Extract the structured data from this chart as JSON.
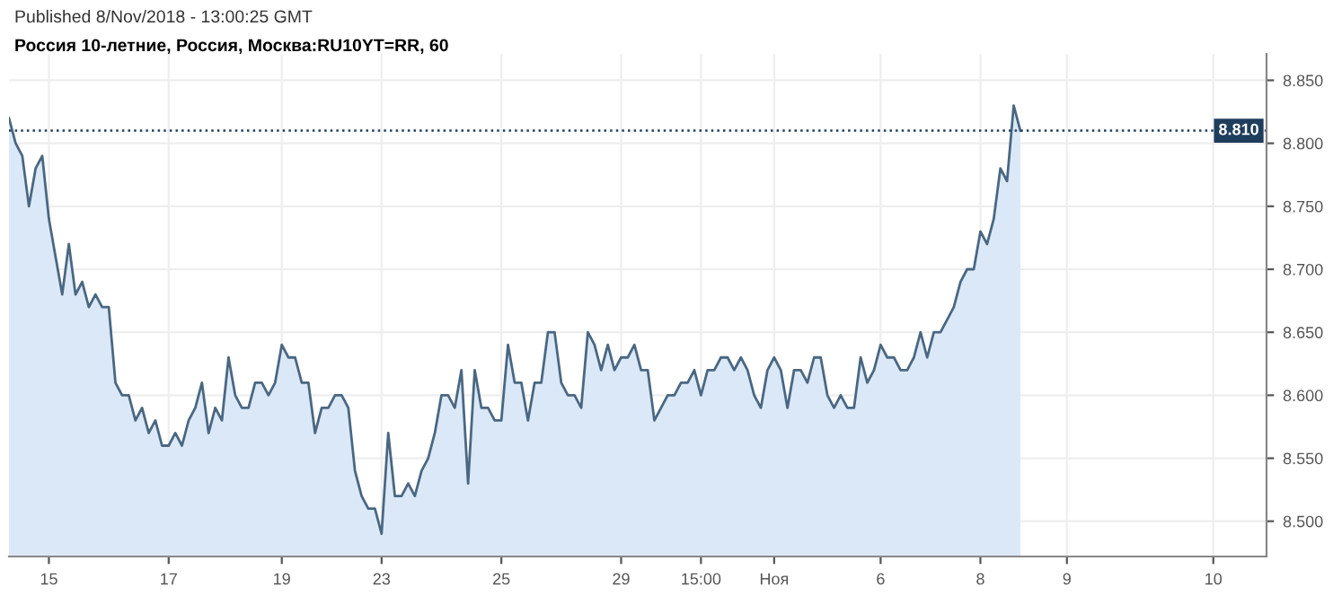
{
  "chart_data": {
    "type": "area",
    "title": "Россия 10-летние, Россия, Москва:RU10YT=RR, 60",
    "annotations": [
      "Published 8/Nov/2018 - 13:00:25 GMT"
    ],
    "categories": [
      null,
      null,
      null,
      null,
      null,
      null,
      "15",
      null,
      null,
      null,
      null,
      null,
      null,
      null,
      null,
      null,
      null,
      null,
      null,
      null,
      null,
      null,
      null,
      null,
      "17",
      null,
      null,
      null,
      null,
      null,
      null,
      null,
      null,
      null,
      null,
      null,
      null,
      null,
      null,
      null,
      null,
      "19",
      null,
      null,
      null,
      null,
      null,
      null,
      null,
      null,
      null,
      null,
      null,
      null,
      null,
      null,
      "23",
      null,
      null,
      null,
      null,
      null,
      null,
      null,
      null,
      null,
      null,
      null,
      null,
      null,
      null,
      null,
      null,
      null,
      "25",
      null,
      null,
      null,
      null,
      null,
      null,
      null,
      null,
      null,
      null,
      null,
      null,
      null,
      null,
      null,
      null,
      null,
      "29",
      null,
      null,
      null,
      null,
      null,
      null,
      null,
      null,
      null,
      null,
      null,
      "15:00",
      null,
      null,
      null,
      null,
      null,
      null,
      null,
      null,
      null,
      null,
      "Ноя",
      null,
      null,
      null,
      null,
      null,
      null,
      null,
      null,
      null,
      null,
      null,
      null,
      null,
      null,
      null,
      "6",
      null,
      null,
      null,
      null,
      null,
      null,
      null,
      null,
      null,
      null,
      null,
      null,
      null,
      null,
      "8",
      null,
      null,
      null,
      null,
      null,
      null,
      null,
      null,
      null,
      null,
      null,
      null,
      "9",
      null,
      null,
      null,
      null,
      null,
      null,
      null,
      null,
      null,
      null,
      null,
      null,
      null,
      null,
      null,
      null,
      null,
      null,
      null,
      null,
      null,
      "10",
      null,
      null,
      null,
      null,
      null,
      null,
      null,
      null
    ],
    "series": [
      {
        "color": "#4a6782",
        "values": [
          8.82,
          8.8,
          8.79,
          8.75,
          8.78,
          8.79,
          8.74,
          8.71,
          8.68,
          8.72,
          8.68,
          8.69,
          8.67,
          8.68,
          8.67,
          8.67,
          8.61,
          8.6,
          8.6,
          8.58,
          8.59,
          8.57,
          8.58,
          8.56,
          8.56,
          8.57,
          8.56,
          8.58,
          8.59,
          8.61,
          8.57,
          8.59,
          8.58,
          8.63,
          8.6,
          8.59,
          8.59,
          8.61,
          8.61,
          8.6,
          8.61,
          8.64,
          8.63,
          8.63,
          8.61,
          8.61,
          8.57,
          8.59,
          8.59,
          8.6,
          8.6,
          8.59,
          8.54,
          8.52,
          8.51,
          8.51,
          8.49,
          8.57,
          8.52,
          8.52,
          8.53,
          8.52,
          8.54,
          8.55,
          8.57,
          8.6,
          8.6,
          8.59,
          8.62,
          8.53,
          8.62,
          8.59,
          8.59,
          8.58,
          8.58,
          8.64,
          8.61,
          8.61,
          8.58,
          8.61,
          8.61,
          8.65,
          8.65,
          8.61,
          8.6,
          8.6,
          8.59,
          8.65,
          8.64,
          8.62,
          8.64,
          8.62,
          8.63,
          8.63,
          8.64,
          8.62,
          8.62,
          8.58,
          8.59,
          8.6,
          8.6,
          8.61,
          8.61,
          8.62,
          8.6,
          8.62,
          8.62,
          8.63,
          8.63,
          8.62,
          8.63,
          8.62,
          8.6,
          8.59,
          8.62,
          8.63,
          8.62,
          8.59,
          8.62,
          8.62,
          8.61,
          8.63,
          8.63,
          8.6,
          8.59,
          8.6,
          8.59,
          8.59,
          8.63,
          8.61,
          8.62,
          8.64,
          8.63,
          8.63,
          8.62,
          8.62,
          8.63,
          8.65,
          8.63,
          8.65,
          8.65,
          8.66,
          8.67,
          8.69,
          8.7,
          8.7,
          8.73,
          8.72,
          8.74,
          8.78,
          8.77,
          8.83,
          8.81,
          null,
          null,
          null,
          null,
          null,
          null,
          null,
          null,
          null,
          null,
          null,
          null,
          null,
          null,
          null,
          null,
          null,
          null,
          null,
          null,
          null,
          null,
          null,
          null,
          null,
          null,
          null,
          null,
          null,
          null,
          null,
          null,
          null,
          null,
          null,
          null,
          null
        ]
      }
    ],
    "ylim": [
      8.472,
      8.871
    ],
    "yticks": [
      {
        "value": 8.5,
        "label": "8.500"
      },
      {
        "value": 8.55,
        "label": "8.550"
      },
      {
        "value": 8.6,
        "label": "8.600"
      },
      {
        "value": 8.65,
        "label": "8.650"
      },
      {
        "value": 8.7,
        "label": "8.700"
      },
      {
        "value": 8.75,
        "label": "8.750"
      },
      {
        "value": 8.8,
        "label": "8.800"
      },
      {
        "value": 8.85,
        "label": "8.850"
      }
    ],
    "ref_lines": [
      {
        "axis": "y",
        "value": 8.81,
        "label": "8.810",
        "color": "#1f3d5c",
        "line_style": "dotted"
      }
    ],
    "grid": true
  }
}
